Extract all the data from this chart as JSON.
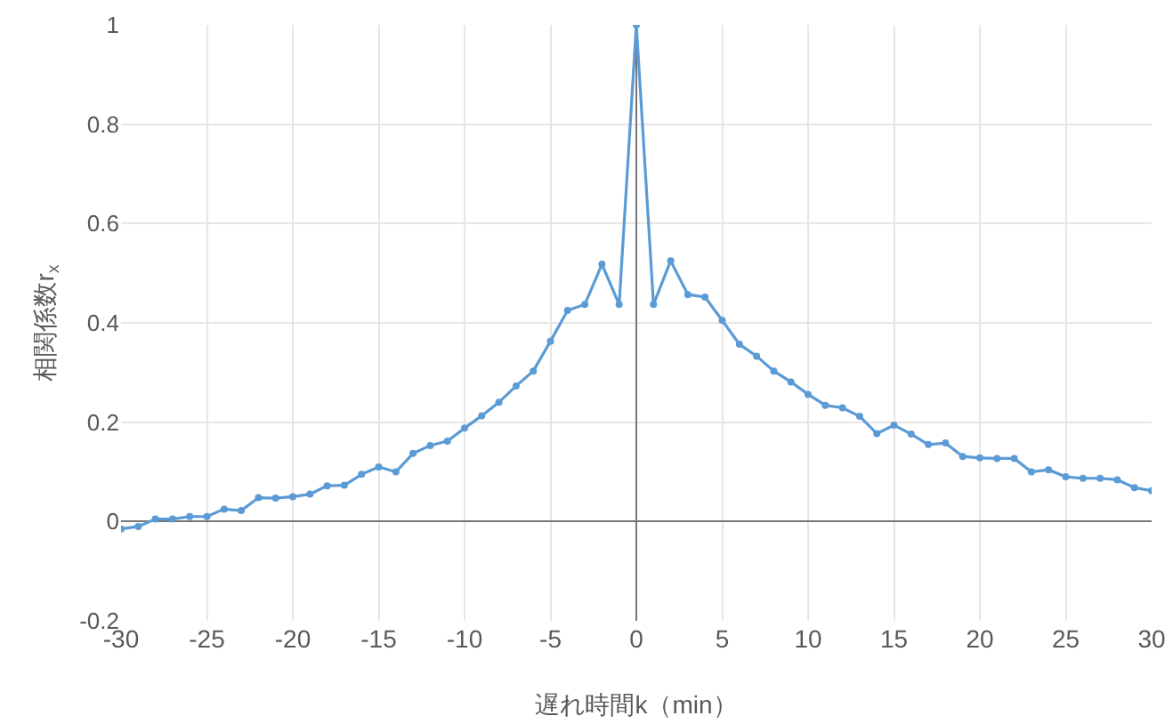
{
  "chart_data": {
    "type": "line",
    "xlabel": "遅れ時間k（min）",
    "ylabel": "相関係数r$_{x}$",
    "x": [
      -30,
      -29,
      -28,
      -27,
      -26,
      -25,
      -24,
      -23,
      -22,
      -21,
      -20,
      -19,
      -18,
      -17,
      -16,
      -15,
      -14,
      -13,
      -12,
      -11,
      -10,
      -9,
      -8,
      -7,
      -6,
      -5,
      -4,
      -3,
      -2,
      -1,
      0,
      1,
      2,
      3,
      4,
      5,
      6,
      7,
      8,
      9,
      10,
      11,
      12,
      13,
      14,
      15,
      16,
      17,
      18,
      19,
      20,
      21,
      22,
      23,
      24,
      25,
      26,
      27,
      28,
      29,
      30
    ],
    "series": [
      {
        "color": "#5b9bd5",
        "values": [
          -0.015,
          -0.01,
          0.005,
          0.005,
          0.01,
          0.01,
          0.025,
          0.022,
          0.048,
          0.047,
          0.05,
          0.055,
          0.072,
          0.073,
          0.095,
          0.11,
          0.1,
          0.137,
          0.153,
          0.162,
          0.188,
          0.213,
          0.24,
          0.273,
          0.303,
          0.363,
          0.425,
          0.437,
          0.518,
          0.437,
          1,
          0.437,
          0.525,
          0.457,
          0.452,
          0.405,
          0.357,
          0.333,
          0.303,
          0.281,
          0.256,
          0.234,
          0.229,
          0.212,
          0.177,
          0.194,
          0.176,
          0.155,
          0.158,
          0.131,
          0.128,
          0.127,
          0.127,
          0.1,
          0.104,
          0.09,
          0.087,
          0.087,
          0.084,
          0.068,
          0.062
        ]
      }
    ],
    "xlim": [
      -30,
      30
    ],
    "xticks": [
      -30,
      -25,
      -20,
      -15,
      -10,
      -5,
      0,
      5,
      10,
      15,
      20,
      25,
      30
    ],
    "ylim": [
      -0.2,
      1
    ],
    "yticks": [
      -0.2,
      0,
      0.2,
      0.4,
      0.6,
      0.8,
      1
    ],
    "grid": true,
    "marker": "circle",
    "line_style": "solid"
  }
}
